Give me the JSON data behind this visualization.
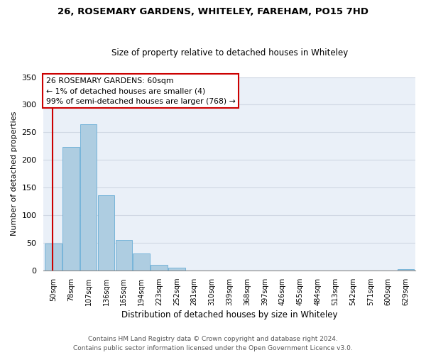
{
  "title": "26, ROSEMARY GARDENS, WHITELEY, FAREHAM, PO15 7HD",
  "subtitle": "Size of property relative to detached houses in Whiteley",
  "xlabel": "Distribution of detached houses by size in Whiteley",
  "ylabel": "Number of detached properties",
  "bar_labels": [
    "50sqm",
    "78sqm",
    "107sqm",
    "136sqm",
    "165sqm",
    "194sqm",
    "223sqm",
    "252sqm",
    "281sqm",
    "310sqm",
    "339sqm",
    "368sqm",
    "397sqm",
    "426sqm",
    "455sqm",
    "484sqm",
    "513sqm",
    "542sqm",
    "571sqm",
    "600sqm",
    "629sqm"
  ],
  "bar_heights": [
    49,
    224,
    265,
    136,
    55,
    31,
    10,
    5,
    0,
    0,
    0,
    0,
    0,
    0,
    0,
    0,
    0,
    0,
    0,
    0,
    2
  ],
  "bar_color": "#aecde1",
  "bar_edge_color": "#6aaed6",
  "highlight_color": "#cc0000",
  "ylim": [
    0,
    350
  ],
  "yticks": [
    0,
    50,
    100,
    150,
    200,
    250,
    300,
    350
  ],
  "annotation_box_text": "26 ROSEMARY GARDENS: 60sqm\n← 1% of detached houses are smaller (4)\n99% of semi-detached houses are larger (768) →",
  "annotation_box_color": "#ffffff",
  "annotation_box_edge_color": "#cc0000",
  "footer_line1": "Contains HM Land Registry data © Crown copyright and database right 2024.",
  "footer_line2": "Contains public sector information licensed under the Open Government Licence v3.0.",
  "background_color": "#ffffff",
  "grid_color": "#d0d8e4",
  "title_fontsize": 9.5,
  "subtitle_fontsize": 8.5
}
